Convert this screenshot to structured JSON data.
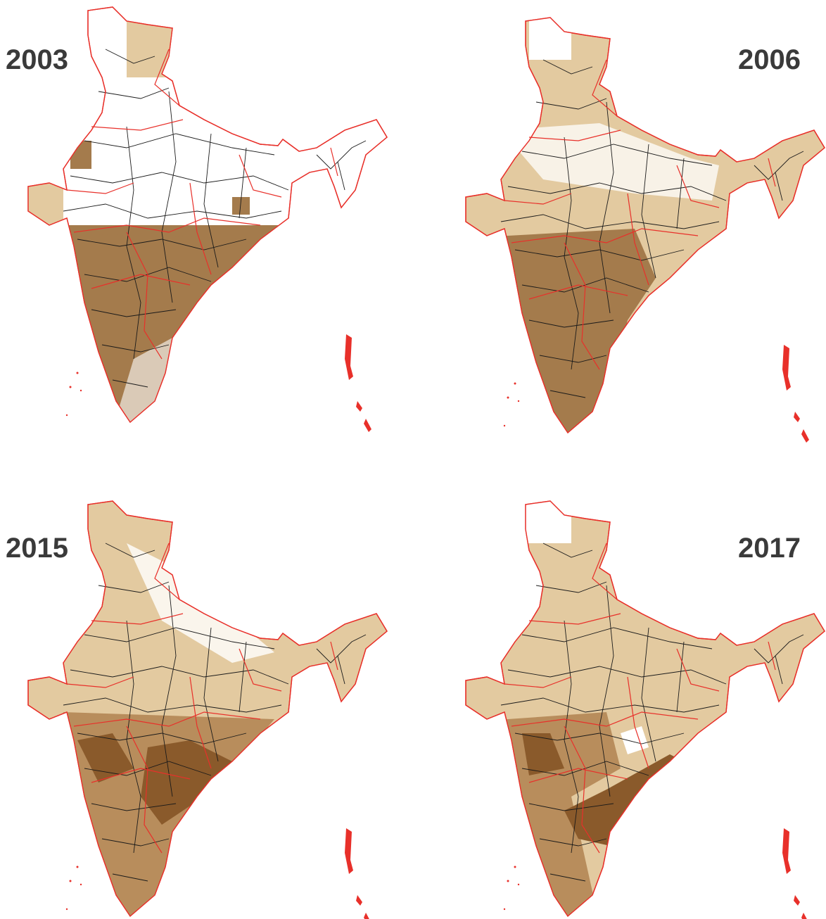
{
  "panels": [
    {
      "year": "2003"
    },
    {
      "year": "2006"
    },
    {
      "year": "2015"
    },
    {
      "year": "2017"
    }
  ]
}
